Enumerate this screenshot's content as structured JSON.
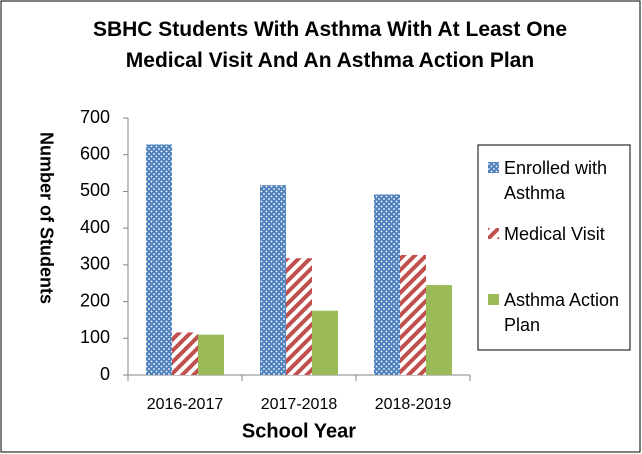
{
  "chart_data": {
    "type": "bar",
    "title": "SBHC Students With Asthma With At Least One Medical Visit And An Asthma Action Plan",
    "x_label": "School Year",
    "y_label": "Number of Students",
    "categories": [
      "2016-2017",
      "2017-2018",
      "2018-2019"
    ],
    "series": [
      {
        "name": "Enrolled with Asthma",
        "color": "#4f81bd",
        "pattern": "dots",
        "values": [
          628,
          517,
          492
        ]
      },
      {
        "name": "Medical Visit",
        "color": "#c0504d",
        "pattern": "stripes",
        "values": [
          116,
          318,
          327
        ]
      },
      {
        "name": "Asthma Action Plan",
        "color": "#9bbb59",
        "pattern": "solid",
        "values": [
          110,
          175,
          245
        ]
      }
    ],
    "ylim": [
      0,
      700
    ],
    "yticks": [
      0,
      100,
      200,
      300,
      400,
      500,
      600,
      700
    ],
    "grid": false,
    "legend": "right"
  }
}
